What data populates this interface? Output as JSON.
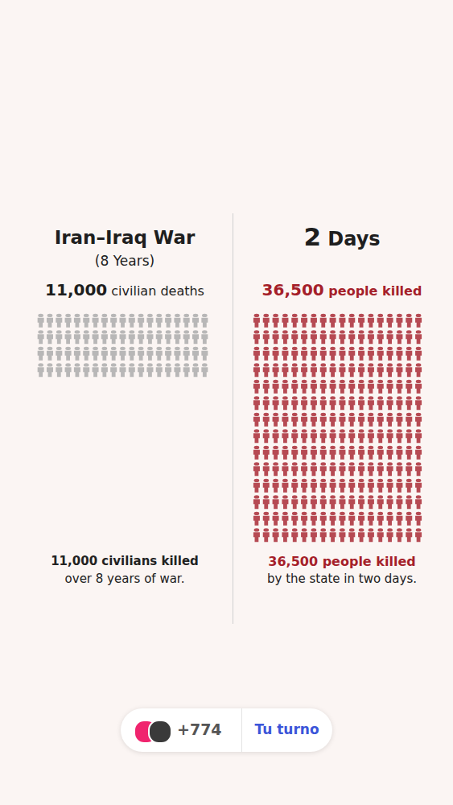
{
  "chart_data": [
    {
      "type": "pictogram",
      "title": "Iran–Iraq War",
      "subtitle": "(8 Years)",
      "headline": "11,000 civilian deaths",
      "values": [
        11000
      ],
      "color": "#a8a8a8",
      "caption": [
        "11,000 civilians killed",
        "over 8 years of war."
      ],
      "tick_labels": false
    },
    {
      "type": "pictogram",
      "title": "2 Days",
      "headline": "36,500 people killed",
      "values": [
        36500
      ],
      "color": "#a51f2a",
      "caption": [
        "36,500 people killed",
        "by the state in two days."
      ],
      "tick_labels": false
    }
  ],
  "footer": {
    "count": "+774",
    "button": "Tu turno"
  }
}
